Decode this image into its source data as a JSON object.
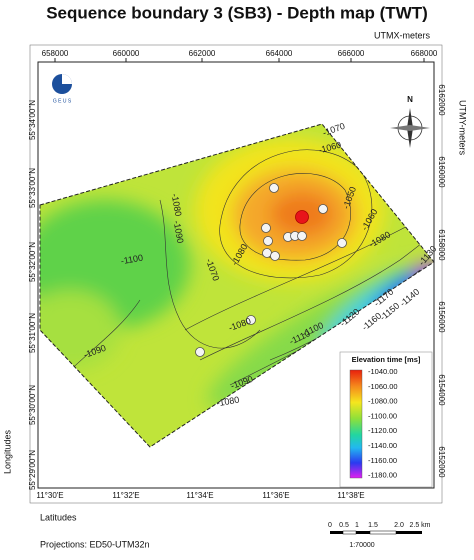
{
  "header": {
    "title": "Sequence boundary 3 (SB3) - Depth map (TWT)",
    "x_axis_name": "UTMX-meters",
    "y_axis_name": "UTMY-meters"
  },
  "top_ticks": [
    "658000",
    "660000",
    "662000",
    "664000",
    "666000",
    "668000"
  ],
  "right_ticks": [
    "6162000",
    "6160000",
    "6158000",
    "6156000",
    "6154000",
    "6152000"
  ],
  "left_ticks": [
    "55°34'00\"N",
    "55°33'00\"N",
    "55°32'00\"N",
    "55°31'00\"N",
    "55°30'00\"N",
    "55°29'00\"N"
  ],
  "bottom_ticks": [
    "11°30'E",
    "11°32'E",
    "11°34'E",
    "11°36'E",
    "11°38'E"
  ],
  "side_label": "Longitudes",
  "bottom_label": "Latitudes",
  "projection": "Projections: ED50-UTM32n",
  "logo": "G E U S",
  "north": "N",
  "contour_labels": [
    "-1070",
    "-1060",
    "-1050",
    "-1060",
    "-1080",
    "-1080",
    "-1090",
    "-1100",
    "-1070",
    "-1080",
    "-1090",
    "-1090",
    "-1080",
    "-1100",
    "-1110",
    "-1120",
    "-1130",
    "-1140",
    "-1150",
    "-1160",
    "-1170",
    "-1080"
  ],
  "legend": {
    "title": "Elevation time [ms]",
    "labels": [
      "-1040.00",
      "-1060.00",
      "-1080.00",
      "-1100.00",
      "-1120.00",
      "-1140.00",
      "-1160.00",
      "-1180.00"
    ]
  },
  "scale_bar": {
    "labels": [
      "0",
      "0.5",
      "1",
      "1.5",
      "2.0",
      "2.5 km"
    ],
    "ratio": "1:70000"
  }
}
